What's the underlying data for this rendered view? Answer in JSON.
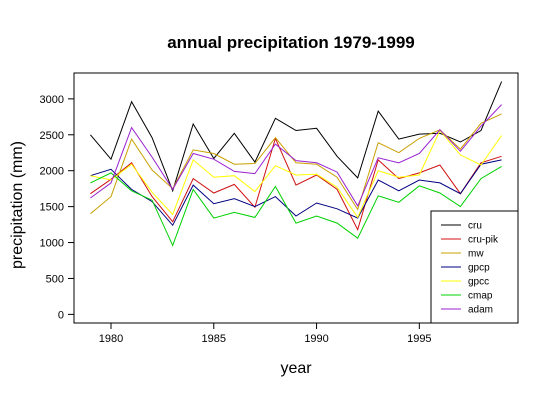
{
  "chart_data": {
    "type": "line",
    "title": "annual precipitation 1979-1999",
    "xlabel": "year",
    "ylabel": "precipitation (mm)",
    "xlim": [
      1978.2,
      1999.8
    ],
    "ylim": [
      -120,
      3360
    ],
    "x_ticks": [
      1980,
      1985,
      1990,
      1995
    ],
    "y_ticks": [
      0,
      500,
      1000,
      1500,
      2000,
      2500,
      3000
    ],
    "grid": false,
    "legend_position": "bottom-right",
    "x": [
      1979,
      1980,
      1981,
      1982,
      1983,
      1984,
      1985,
      1986,
      1987,
      1988,
      1989,
      1990,
      1991,
      1992,
      1993,
      1994,
      1995,
      1996,
      1997,
      1998,
      1999
    ],
    "series": [
      {
        "name": "cru",
        "color": "#000000",
        "values": [
          2500,
          2160,
          2960,
          2460,
          1720,
          2650,
          2170,
          2520,
          2120,
          2730,
          2560,
          2590,
          2200,
          1900,
          2830,
          2440,
          2510,
          2520,
          2400,
          2560,
          3240
        ]
      },
      {
        "name": "cru-pik",
        "color": "#d01010",
        "values": [
          1680,
          1880,
          2110,
          1640,
          1290,
          1890,
          1690,
          1810,
          1490,
          2450,
          1800,
          1940,
          1740,
          1180,
          2150,
          1890,
          1970,
          2080,
          1680,
          2110,
          2200
        ]
      },
      {
        "name": "mw",
        "color": "#c8a000",
        "values": [
          1400,
          1640,
          2440,
          2010,
          1750,
          2290,
          2240,
          2090,
          2100,
          2460,
          2110,
          2090,
          1910,
          1460,
          2390,
          2250,
          2450,
          2570,
          2300,
          2660,
          2790
        ]
      },
      {
        "name": "gpcp",
        "color": "#000080",
        "values": [
          1930,
          2020,
          1740,
          1570,
          1240,
          1800,
          1540,
          1610,
          1500,
          1640,
          1370,
          1550,
          1470,
          1340,
          1870,
          1720,
          1870,
          1830,
          1680,
          2090,
          2150
        ]
      },
      {
        "name": "gpcc",
        "color": "#ffff00",
        "values": [
          1930,
          1870,
          2090,
          1700,
          1390,
          2150,
          1910,
          1930,
          1710,
          2070,
          1940,
          1950,
          1770,
          1350,
          2000,
          1910,
          1940,
          2560,
          2220,
          2080,
          2490
        ]
      },
      {
        "name": "cmap",
        "color": "#00d000",
        "values": [
          1830,
          1970,
          1720,
          1590,
          960,
          1740,
          1340,
          1420,
          1350,
          1780,
          1270,
          1370,
          1270,
          1060,
          1650,
          1560,
          1790,
          1690,
          1500,
          1890,
          2060
        ]
      },
      {
        "name": "adam",
        "color": "#9a20d0",
        "values": [
          1620,
          1830,
          2600,
          2190,
          1740,
          2240,
          2160,
          1990,
          1960,
          2370,
          2140,
          2110,
          1980,
          1510,
          2180,
          2110,
          2240,
          2570,
          2270,
          2620,
          2920
        ]
      }
    ]
  }
}
